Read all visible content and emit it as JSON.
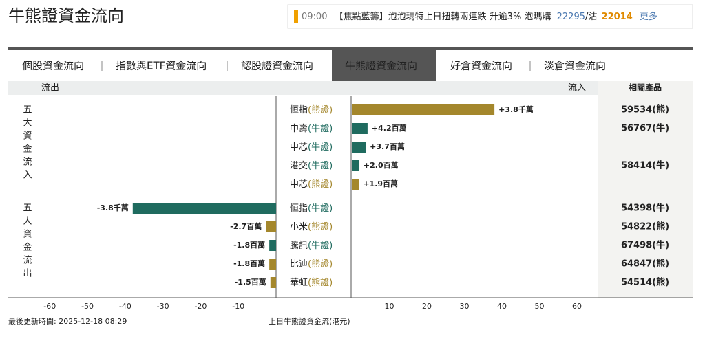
{
  "header": {
    "title": "牛熊證資金流向"
  },
  "ticker": {
    "time": "09:00",
    "headline": "【焦點藍籌】泡泡瑪特上日扭轉兩連跌 升逾3% 泡瑪購",
    "call": "22295",
    "put_label": "/沽",
    "put": "22014",
    "more": "更多"
  },
  "tabs": [
    {
      "label": "個股資金流向",
      "active": false
    },
    {
      "label": "指數與ETF資金流向",
      "active": false
    },
    {
      "label": "認股證資金流向",
      "active": false
    },
    {
      "label": "牛熊證資金流向",
      "active": true
    },
    {
      "label": "好倉資金流向",
      "active": false
    },
    {
      "label": "淡倉資金流向",
      "active": false
    }
  ],
  "chart_data": {
    "type": "bar",
    "out_label": "流出",
    "in_label": "流入",
    "product_label": "相關產品",
    "xlim_out": [
      -71,
      0
    ],
    "xlim_in": [
      0,
      65.5
    ],
    "xticks_out": [
      -60,
      -50,
      -40,
      -30,
      -20,
      -10
    ],
    "xticks_in": [
      10,
      20,
      30,
      40,
      50,
      60
    ],
    "x_label": "上日牛熊證資金流(港元)",
    "groups": [
      {
        "label": "五大資金流入",
        "rows": [
          {
            "name": "恒指",
            "kind": "(熊證)",
            "color": "#a4872c",
            "value": 38,
            "value_label": "+3.8千萬",
            "product": "59534(熊)"
          },
          {
            "name": "中壽",
            "kind": "(牛證)",
            "color": "#1f6b5f",
            "value": 4.2,
            "value_label": "+4.2百萬",
            "product": "56767(牛)"
          },
          {
            "name": "中芯",
            "kind": "(牛證)",
            "color": "#1f6b5f",
            "value": 3.7,
            "value_label": "+3.7百萬",
            "product": null
          },
          {
            "name": "港交",
            "kind": "(牛證)",
            "color": "#1f6b5f",
            "value": 2.0,
            "value_label": "+2.0百萬",
            "product": "58414(牛)"
          },
          {
            "name": "中芯",
            "kind": "(熊證)",
            "color": "#a4872c",
            "value": 1.9,
            "value_label": "+1.9百萬",
            "product": null
          }
        ]
      },
      {
        "label": "五大資金流出",
        "rows": [
          {
            "name": "恒指",
            "kind": "(牛證)",
            "color": "#1f6b5f",
            "value": -38,
            "value_label": "-3.8千萬",
            "product": "54398(牛)"
          },
          {
            "name": "小米",
            "kind": "(熊證)",
            "color": "#a4872c",
            "value": -2.7,
            "value_label": "-2.7百萬",
            "product": "54822(熊)"
          },
          {
            "name": "騰訊",
            "kind": "(牛證)",
            "color": "#1f6b5f",
            "value": -1.8,
            "value_label": "-1.8百萬",
            "product": "67498(牛)"
          },
          {
            "name": "比迪",
            "kind": "(熊證)",
            "color": "#a4872c",
            "value": -1.8,
            "value_label": "-1.8百萬",
            "product": "64847(熊)"
          },
          {
            "name": "華虹",
            "kind": "(熊證)",
            "color": "#a4872c",
            "value": -1.5,
            "value_label": "-1.5百萬",
            "product": "54514(熊)"
          }
        ]
      }
    ]
  },
  "footer": {
    "updated": "最後更新時間: 2025-12-18 08:29"
  }
}
